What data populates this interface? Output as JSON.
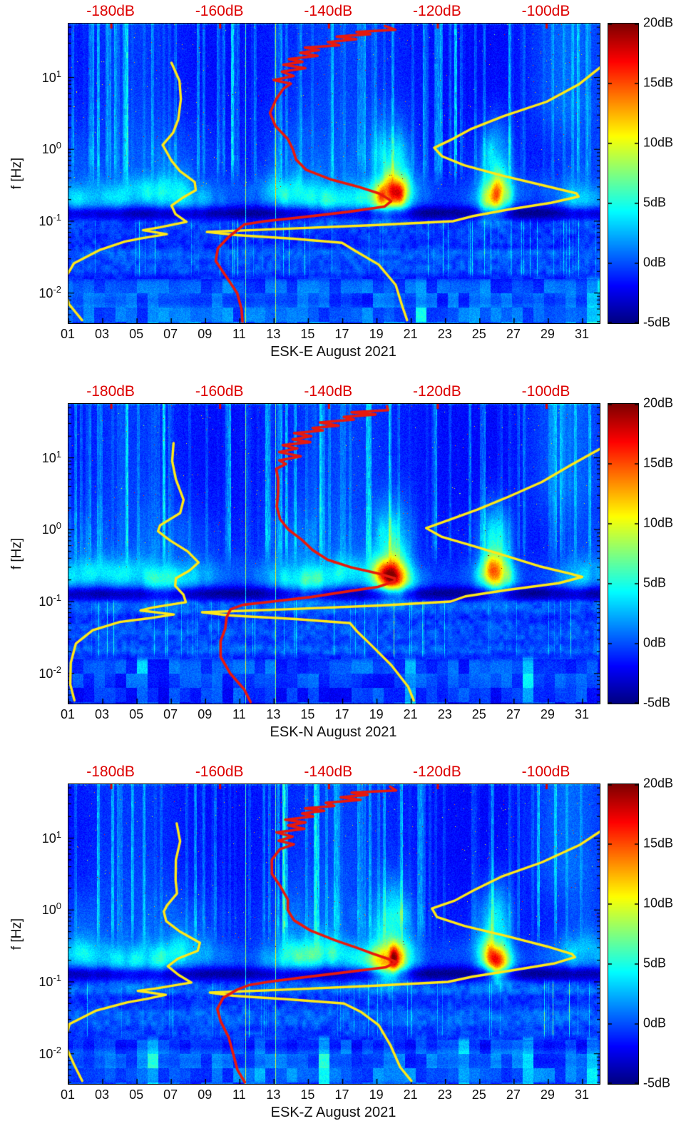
{
  "page": {
    "background": "#ffffff"
  },
  "colors": {
    "axis_text": "#111111",
    "top_axis_red": "#dd0000",
    "curve_red": "#e8190c",
    "curve_yellow": "#ffe818"
  },
  "chart_data": {
    "type": "heatmap",
    "layout": "three stacked spectrogram panels with identical axes, jet colormap, shared colorbar scale",
    "panels": [
      {
        "channel": "ESK-E",
        "title": "ESK-E August 2021"
      },
      {
        "channel": "ESK-N",
        "title": "ESK-N August 2021"
      },
      {
        "channel": "ESK-Z",
        "title": "ESK-Z August 2021"
      }
    ],
    "x": {
      "ticks": [
        "01",
        "03",
        "05",
        "07",
        "09",
        "11",
        "13",
        "15",
        "17",
        "19",
        "21",
        "23",
        "25",
        "27",
        "29",
        "31"
      ],
      "tick_days": [
        1,
        3,
        5,
        7,
        9,
        11,
        13,
        15,
        17,
        19,
        21,
        23,
        25,
        27,
        29,
        31
      ],
      "range_days": [
        1,
        32
      ]
    },
    "y": {
      "label": "f [Hz]",
      "scale": "log10",
      "ticks": [
        {
          "mant": "10",
          "exp": "1"
        },
        {
          "mant": "10",
          "exp": "0"
        },
        {
          "mant": "10",
          "exp": "-1"
        },
        {
          "mant": "10",
          "exp": "-2"
        }
      ],
      "tick_log10": [
        1,
        0,
        -1,
        -2
      ],
      "log10_range": [
        -2.42,
        1.75
      ]
    },
    "colorbar": {
      "colormap": "jet",
      "range_db": [
        -5,
        20
      ],
      "tick_labels": [
        "20dB",
        "15dB",
        "10dB",
        "5dB",
        "0dB",
        "-5dB"
      ],
      "tick_values_db": [
        20,
        15,
        10,
        5,
        0,
        -5
      ]
    },
    "top_axis": {
      "labels": [
        "-180dB",
        "-160dB",
        "-140dB",
        "-120dB",
        "-100dB"
      ],
      "values_db": [
        -180,
        -160,
        -140,
        -120,
        -100
      ],
      "day_positions": [
        3.5,
        9.85,
        16.2,
        22.55,
        28.9
      ]
    },
    "overlay_curves": {
      "red_median_spectrum_day_hz": [
        [
          19.6,
          52
        ],
        [
          19.9,
          46
        ],
        [
          17.6,
          43
        ],
        [
          18.7,
          40
        ],
        [
          16.9,
          37
        ],
        [
          17.8,
          34
        ],
        [
          15.9,
          31
        ],
        [
          16.7,
          28
        ],
        [
          15.0,
          26
        ],
        [
          15.8,
          24
        ],
        [
          14.4,
          22
        ],
        [
          15.3,
          20
        ],
        [
          13.9,
          18
        ],
        [
          14.9,
          16.5
        ],
        [
          13.6,
          15
        ],
        [
          14.6,
          13.5
        ],
        [
          13.3,
          12
        ],
        [
          14.3,
          10.5
        ],
        [
          13.2,
          9.2
        ],
        [
          13.9,
          8.2
        ],
        [
          13.3,
          7
        ],
        [
          13.1,
          5
        ],
        [
          13.0,
          3.2
        ],
        [
          13.2,
          2.1
        ],
        [
          13.6,
          1.4
        ],
        [
          13.9,
          1.0
        ],
        [
          14.4,
          0.72
        ],
        [
          15.1,
          0.52
        ],
        [
          16.3,
          0.38
        ],
        [
          17.7,
          0.3
        ],
        [
          19.0,
          0.245
        ],
        [
          19.8,
          0.21
        ],
        [
          20.0,
          0.19
        ],
        [
          19.3,
          0.16
        ],
        [
          17.1,
          0.135
        ],
        [
          14.9,
          0.115
        ],
        [
          12.7,
          0.1
        ],
        [
          11.3,
          0.09
        ],
        [
          10.7,
          0.078
        ],
        [
          10.2,
          0.06
        ],
        [
          9.9,
          0.042
        ],
        [
          9.8,
          0.028
        ],
        [
          10.1,
          0.017
        ],
        [
          10.6,
          0.01
        ],
        [
          11.1,
          0.006
        ],
        [
          11.4,
          0.004
        ]
      ],
      "yellow_low_spectrum_day_hz": [
        [
          7.15,
          16
        ],
        [
          7.3,
          9
        ],
        [
          7.35,
          5
        ],
        [
          7.5,
          2.6
        ],
        [
          7.35,
          1.7
        ],
        [
          6.5,
          1.15
        ],
        [
          6.45,
          0.95
        ],
        [
          6.9,
          0.7
        ],
        [
          7.7,
          0.5
        ],
        [
          8.55,
          0.35
        ],
        [
          8.3,
          0.27
        ],
        [
          7.4,
          0.21
        ],
        [
          7.05,
          0.165
        ],
        [
          7.5,
          0.125
        ],
        [
          7.95,
          0.098
        ],
        [
          6.1,
          0.082
        ],
        [
          5.2,
          0.075
        ],
        [
          6.9,
          0.066
        ],
        [
          5.5,
          0.058
        ],
        [
          4.2,
          0.052
        ],
        [
          2.6,
          0.04
        ],
        [
          1.3,
          0.026
        ],
        [
          0.9,
          0.014
        ],
        [
          1.15,
          0.007
        ],
        [
          1.6,
          0.0042
        ]
      ],
      "yellow_high_spectrum_day_hz": [
        [
          32.2,
          14
        ],
        [
          30.6,
          8
        ],
        [
          28.7,
          4.6
        ],
        [
          26.5,
          2.9
        ],
        [
          24.7,
          1.9
        ],
        [
          23.3,
          1.35
        ],
        [
          22.1,
          1.05
        ],
        [
          22.7,
          0.8
        ],
        [
          24.3,
          0.6
        ],
        [
          26.5,
          0.43
        ],
        [
          28.7,
          0.31
        ],
        [
          30.4,
          0.245
        ],
        [
          30.8,
          0.22
        ],
        [
          29.4,
          0.18
        ],
        [
          26.7,
          0.145
        ],
        [
          24.4,
          0.118
        ],
        [
          23.3,
          0.1
        ],
        [
          19.0,
          0.088
        ],
        [
          13.6,
          0.078
        ],
        [
          9.0,
          0.071
        ],
        [
          10.6,
          0.064
        ],
        [
          14.1,
          0.057
        ],
        [
          17.2,
          0.05
        ],
        [
          17.9,
          0.038
        ],
        [
          18.9,
          0.025
        ],
        [
          19.9,
          0.013
        ],
        [
          20.6,
          0.0065
        ],
        [
          21.0,
          0.0042
        ]
      ]
    },
    "features": {
      "storm_events_day_amp_width": [
        [
          19.9,
          13.5,
          0.75
        ],
        [
          25.9,
          12.5,
          0.62
        ],
        [
          16.8,
          4.0,
          1.8
        ],
        [
          14.0,
          3.2,
          1.2
        ],
        [
          4.6,
          3.0,
          2.2
        ],
        [
          7.5,
          2.6,
          1.5
        ],
        [
          30.9,
          3.0,
          1.1
        ],
        [
          1.5,
          2.0,
          1.0
        ]
      ],
      "event_line_days": [
        11.35,
        13.08
      ],
      "microseism_band_center_hz": 0.22,
      "quiet_dark_band_hz": [
        0.1,
        0.17
      ],
      "noisy_low_band_hz": [
        0.015,
        0.1
      ],
      "background_level_db": -1.8
    }
  }
}
